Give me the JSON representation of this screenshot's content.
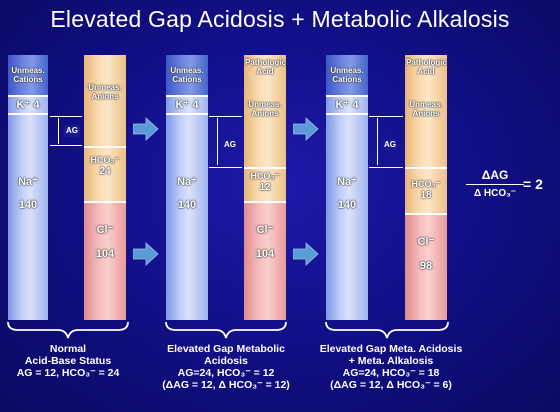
{
  "title": "Elevated Gap Acidosis + Metabolic Alkalosis",
  "panel1": {
    "unmeas_cations": "Unmeas. Cations",
    "k": "K⁺ 4",
    "na_label": "Na⁺",
    "na_value": "140",
    "unmeas_anions": "Unmeas. Anions",
    "hco3_label": "HCO₃⁻",
    "hco3_value": "24",
    "cl_label": "Cl⁻",
    "cl_value": "104",
    "ag": "AG",
    "caption_line1": "Normal",
    "caption_line2": "Acid-Base Status",
    "caption_line3": "AG = 12, HCO₃⁻ = 24"
  },
  "panel2": {
    "unmeas_cations": "Unmeas. Cations",
    "k": "K⁺ 4",
    "na_label": "Na⁺",
    "na_value": "140",
    "pathologic_acid": "Pathologic Acid",
    "unmeas_anions": "Unmeas. Anions",
    "hco3_label": "HCO₃⁻",
    "hco3_value": "12",
    "cl_label": "Cl⁻",
    "cl_value": "104",
    "ag": "AG",
    "caption_line1": "Elevated Gap Metabolic",
    "caption_line2": "Acidosis",
    "caption_line3": "AG=24, HCO₃⁻ = 12",
    "caption_line4": "(ΔAG = 12, Δ HCO₃⁻ = 12)"
  },
  "panel3": {
    "unmeas_cations": "Unmeas. Cations",
    "k": "K⁺ 4",
    "na_label": "Na⁺",
    "na_value": "140",
    "pathologic_acid": "Pathologic Acid",
    "unmeas_anions": "Unmeas. Anions",
    "hco3_label": "HCO₃⁻",
    "hco3_value": "18",
    "cl_label": "Cl⁻",
    "cl_value": "98",
    "ag": "AG",
    "caption_line1": "Elevated Gap Meta. Acidosis",
    "caption_line2": "+ Meta. Alkalosis",
    "caption_line3": "AG=24, HCO₃⁻ = 18",
    "caption_line4": "(ΔAG = 12, Δ HCO₃⁻ = 6)"
  },
  "ratio": {
    "numerator": "ΔAG",
    "denominator": "Δ HCO₃⁻",
    "result": "= 2"
  },
  "colors": {
    "background": "#12108a",
    "cations": "#c3cff7",
    "anions": "#fbdcb0",
    "chloride": "#f6bcbc",
    "arrow": "#5b9bd5"
  }
}
